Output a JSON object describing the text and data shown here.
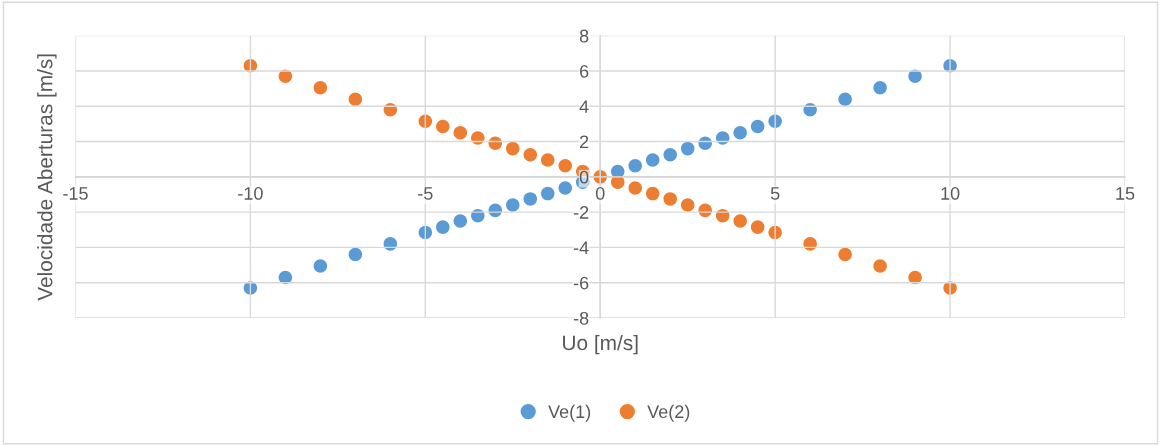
{
  "chart_data": {
    "type": "scatter",
    "xlabel": "Uo [m/s]",
    "ylabel": "Velocidade Aberturas [m/s]",
    "x": [
      -10,
      -9,
      -8,
      -7,
      -6,
      -5,
      -4.5,
      -4,
      -3.5,
      -3,
      -2.5,
      -2,
      -1.5,
      -1,
      -0.5,
      0,
      0.5,
      1,
      1.5,
      2,
      2.5,
      3,
      3.5,
      4,
      4.5,
      5,
      6,
      7,
      8,
      9,
      10
    ],
    "series": [
      {
        "name": "Ve(1)",
        "color": "#5b9bd5",
        "values": [
          -6.3,
          -5.7,
          -5.05,
          -4.4,
          -3.8,
          -3.15,
          -2.85,
          -2.5,
          -2.2,
          -1.9,
          -1.6,
          -1.25,
          -0.95,
          -0.63,
          -0.3,
          null,
          0.3,
          0.63,
          0.95,
          1.25,
          1.6,
          1.9,
          2.2,
          2.5,
          2.85,
          3.15,
          3.8,
          4.4,
          5.05,
          5.7,
          6.3
        ]
      },
      {
        "name": "Ve(2)",
        "color": "#ed7d31",
        "values": [
          6.3,
          5.7,
          5.05,
          4.4,
          3.8,
          3.15,
          2.85,
          2.5,
          2.2,
          1.9,
          1.6,
          1.25,
          0.95,
          0.63,
          0.3,
          0,
          -0.3,
          -0.63,
          -0.95,
          -1.25,
          -1.6,
          -1.9,
          -2.2,
          -2.5,
          -2.85,
          -3.15,
          -3.8,
          -4.4,
          -5.05,
          -5.7,
          -6.3
        ]
      }
    ],
    "xlim": [
      -15,
      15
    ],
    "xticks": [
      -15,
      -10,
      -5,
      0,
      5,
      10,
      15
    ],
    "ylim": [
      -8,
      8
    ],
    "yticks": [
      -8,
      -6,
      -4,
      -2,
      0,
      2,
      4,
      6,
      8
    ],
    "grid": true,
    "legend": "bottom",
    "marker": "circle"
  }
}
